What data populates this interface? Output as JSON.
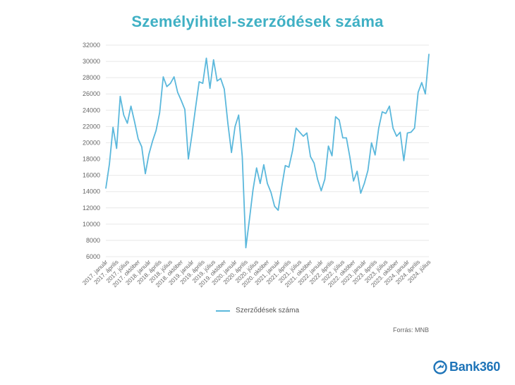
{
  "title": "Személyihitel-szerződések száma",
  "legend_label": "Szerződések száma",
  "source": "Forrás: MNB",
  "brand": "Bank360",
  "colors": {
    "title": "#3fb0c4",
    "line": "#5bb8dc",
    "brand": "#1e74b8"
  },
  "chart_data": {
    "type": "line",
    "title": "Személyihitel-szerződések száma",
    "ylim": [
      6000,
      32000
    ],
    "y_ticks": [
      6000,
      8000,
      10000,
      12000,
      14000,
      16000,
      18000,
      20000,
      22000,
      24000,
      26000,
      28000,
      30000,
      32000
    ],
    "grid": true,
    "legend_position": "bottom",
    "x_tick_labels": [
      "2017. január",
      "2017. április",
      "2017. július",
      "2017. október",
      "2018. január",
      "2018. április",
      "2018. július",
      "2018. október",
      "2019. január",
      "2019. április",
      "2019. július",
      "2019. október",
      "2020. január",
      "2020. április",
      "2020. július",
      "2020. október",
      "2021. január",
      "2021. április",
      "2021. július",
      "2021. október",
      "2022. január",
      "2022. április",
      "2022. július",
      "2022. október",
      "2023. január",
      "2023. április",
      "2023. július",
      "2023. október",
      "2024. január",
      "2024. április",
      "2024. július"
    ],
    "series": [
      {
        "name": "Szerződések száma",
        "values": [
          14400,
          17400,
          21900,
          19300,
          25700,
          23400,
          22400,
          24500,
          22600,
          20500,
          19500,
          16200,
          18600,
          20200,
          21500,
          23700,
          28100,
          26900,
          27300,
          28100,
          26200,
          25200,
          24100,
          18000,
          21000,
          24300,
          27500,
          27300,
          30400,
          26700,
          30200,
          27600,
          27900,
          26600,
          22400,
          18800,
          22000,
          23400,
          18300,
          7100,
          10600,
          14200,
          16900,
          15000,
          17300,
          15000,
          13900,
          12200,
          11700,
          14600,
          17200,
          17000,
          19000,
          21800,
          21300,
          20800,
          21200,
          18300,
          17500,
          15500,
          14100,
          15500,
          19600,
          18400,
          23200,
          22800,
          20600,
          20600,
          18200,
          15300,
          16500,
          13800,
          15000,
          16600,
          20000,
          18500,
          21800,
          23800,
          23600,
          24500,
          21800,
          20800,
          21300,
          17800,
          21200,
          21300,
          21800,
          26200,
          27400,
          26000,
          30900
        ]
      }
    ]
  }
}
